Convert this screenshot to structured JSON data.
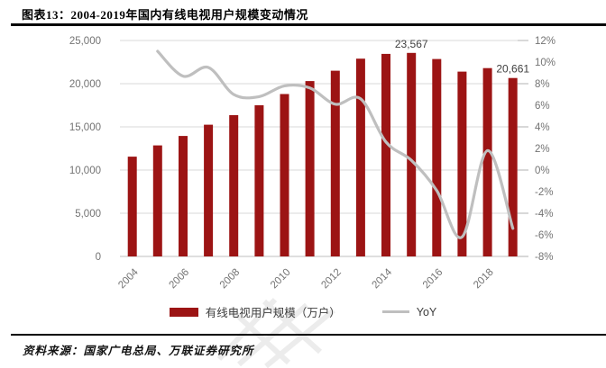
{
  "header": {
    "title": "图表13：2004-2019年国内有线电视用户规模变动情况"
  },
  "chart_data": {
    "type": "bar+line",
    "title": "2004-2019年国内有线电视用户规模变动情况",
    "categories": [
      2004,
      2005,
      2006,
      2007,
      2008,
      2009,
      2010,
      2011,
      2012,
      2013,
      2014,
      2015,
      2016,
      2017,
      2018,
      2019
    ],
    "series": [
      {
        "name": "有线电视用户规模（万户）",
        "type": "bar",
        "axis": "left",
        "values": [
          11550,
          12850,
          13950,
          15250,
          16350,
          17500,
          18800,
          20300,
          21500,
          22900,
          23450,
          23567,
          22850,
          21400,
          21800,
          20661
        ]
      },
      {
        "name": "YoY",
        "type": "line",
        "axis": "right",
        "unit": "%",
        "values": [
          null,
          11.0,
          8.7,
          9.5,
          7.0,
          6.8,
          7.8,
          7.6,
          6.1,
          6.6,
          2.6,
          0.9,
          -1.9,
          -6.2,
          1.8,
          -5.4
        ]
      }
    ],
    "left_axis": {
      "min": 0,
      "max": 25000,
      "step": 5000,
      "tick_labels": [
        "25,000",
        "20,000",
        "15,000",
        "10,000",
        "5,000",
        "0"
      ]
    },
    "right_axis": {
      "min": -8,
      "max": 12,
      "step": 2,
      "tick_labels": [
        "12%",
        "10%",
        "8%",
        "6%",
        "4%",
        "2%",
        "0%",
        "-2%",
        "-4%",
        "-6%",
        "-8%"
      ]
    },
    "x_tick_labels": [
      "2004",
      "2006",
      "2008",
      "2010",
      "2012",
      "2014",
      "2016",
      "2018"
    ],
    "annotations": [
      {
        "category": 2015,
        "text": "23,567"
      },
      {
        "category": 2019,
        "text": "20,661"
      }
    ],
    "grid": true,
    "legend_position": "bottom"
  },
  "legend": {
    "items": [
      {
        "label": "有线电视用户规模（万户）",
        "marker": "bar"
      },
      {
        "label": "YoY",
        "marker": "line"
      }
    ]
  },
  "footer": {
    "source": "资料来源：国家广电总局、万联证券研究所"
  },
  "colors": {
    "bar": "#9C1414",
    "line": "#BFBFBF",
    "grid": "#D9D9D9",
    "baseline": "#BFBFBF",
    "axis_text": "#737373",
    "data_label_text": "#404040"
  }
}
